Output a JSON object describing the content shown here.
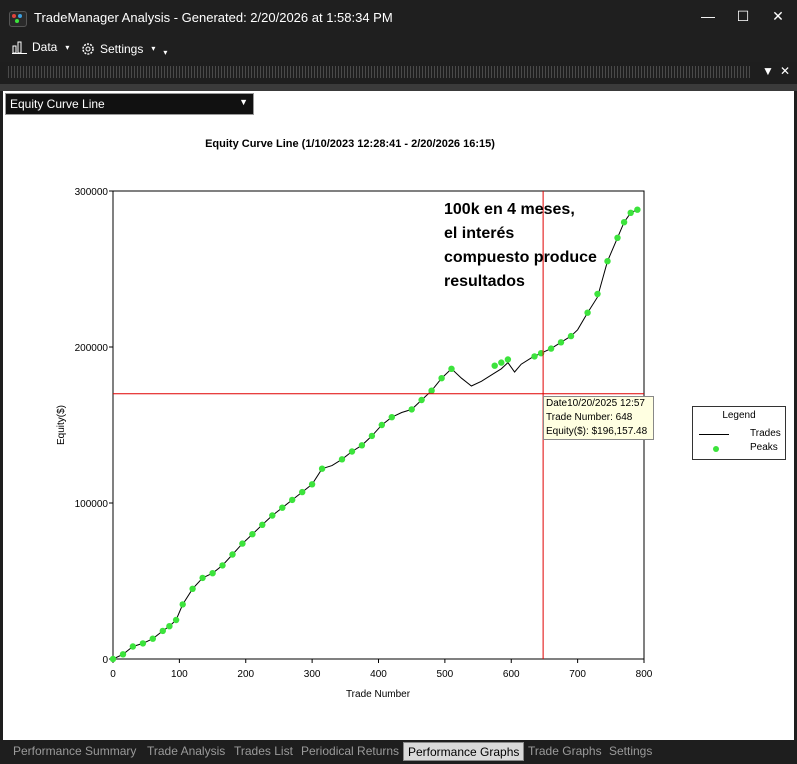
{
  "window": {
    "title": "TradeManager Analysis - Generated: 2/20/2026 at 1:58:34 PM",
    "controls": {
      "minimize": "—",
      "maximize": "☐",
      "close": "✕"
    }
  },
  "toolbar": {
    "data_label": "Data",
    "settings_label": "Settings",
    "caret": "▾"
  },
  "selector": {
    "value": "Equity Curve Line",
    "arrow": "▼"
  },
  "annotation_lines": [
    "100k en 4 meses,",
    "el interés",
    "compuesto produce",
    "resultados"
  ],
  "crosshair": {
    "date": "Date10/20/2025 12:57",
    "trade": "Trade Number: 648",
    "equity": "Equity($): $196,157.48",
    "x": 648,
    "y": 170000
  },
  "legend": {
    "title": "Legend",
    "trades": "Trades",
    "peaks": "Peaks"
  },
  "tabs": [
    "Performance Summary",
    "Trade Analysis",
    "Trades List",
    "Periodical Returns",
    "Performance Graphs",
    "Trade Graphs",
    "Settings"
  ],
  "active_tab": "Performance Graphs",
  "colors": {
    "peaks": "#3ce33c",
    "trades": "#000000",
    "crosshair": "#e00000",
    "grid": "#000000"
  },
  "chart_data": {
    "type": "line",
    "title": "Equity Curve Line (1/10/2023 12:28:41 - 2/20/2026 16:15)",
    "xlabel": "Trade Number",
    "ylabel": "Equity($)",
    "xlim": [
      0,
      800
    ],
    "ylim": [
      0,
      300000
    ],
    "xticks": [
      0,
      100,
      200,
      300,
      400,
      500,
      600,
      700,
      800
    ],
    "yticks": [
      0,
      100000,
      200000,
      300000
    ],
    "grid": true,
    "legend_position": "right",
    "series": [
      {
        "name": "Trades",
        "x": [
          0,
          15,
          30,
          45,
          60,
          75,
          85,
          95,
          105,
          120,
          135,
          150,
          165,
          180,
          195,
          210,
          225,
          240,
          255,
          270,
          285,
          300,
          315,
          330,
          345,
          360,
          375,
          390,
          405,
          420,
          435,
          450,
          465,
          480,
          495,
          510,
          525,
          540,
          555,
          570,
          585,
          595,
          605,
          615,
          630,
          645,
          660,
          675,
          690,
          700,
          715,
          730,
          745,
          760,
          770,
          780,
          790
        ],
        "y": [
          0,
          3000,
          8000,
          10000,
          13000,
          18000,
          21000,
          25000,
          35000,
          45000,
          52000,
          55000,
          60000,
          67000,
          74000,
          80000,
          86000,
          92000,
          97000,
          102000,
          107000,
          112000,
          122000,
          124000,
          128000,
          133000,
          137000,
          143000,
          150000,
          155000,
          158000,
          160000,
          166000,
          172000,
          180000,
          186000,
          180000,
          175000,
          178000,
          182000,
          186000,
          190000,
          184000,
          189000,
          193000,
          196000,
          199000,
          203000,
          207000,
          211000,
          222000,
          232000,
          255000,
          270000,
          280000,
          286000,
          288000
        ]
      },
      {
        "name": "Peaks",
        "x": [
          0,
          15,
          30,
          45,
          60,
          75,
          85,
          95,
          105,
          120,
          135,
          150,
          165,
          180,
          195,
          210,
          225,
          240,
          255,
          270,
          285,
          300,
          315,
          345,
          360,
          375,
          390,
          405,
          420,
          450,
          465,
          480,
          495,
          510,
          575,
          585,
          595,
          635,
          645,
          660,
          675,
          690,
          715,
          730,
          745,
          760,
          770,
          780,
          790
        ],
        "y": [
          0,
          3000,
          8000,
          10000,
          13000,
          18000,
          21000,
          25000,
          35000,
          45000,
          52000,
          55000,
          60000,
          67000,
          74000,
          80000,
          86000,
          92000,
          97000,
          102000,
          107000,
          112000,
          122000,
          128000,
          133000,
          137000,
          143000,
          150000,
          155000,
          160000,
          166000,
          172000,
          180000,
          186000,
          188000,
          190000,
          192000,
          194000,
          196000,
          199000,
          203000,
          207000,
          222000,
          234000,
          255000,
          270000,
          280000,
          286000,
          288000
        ]
      }
    ]
  }
}
